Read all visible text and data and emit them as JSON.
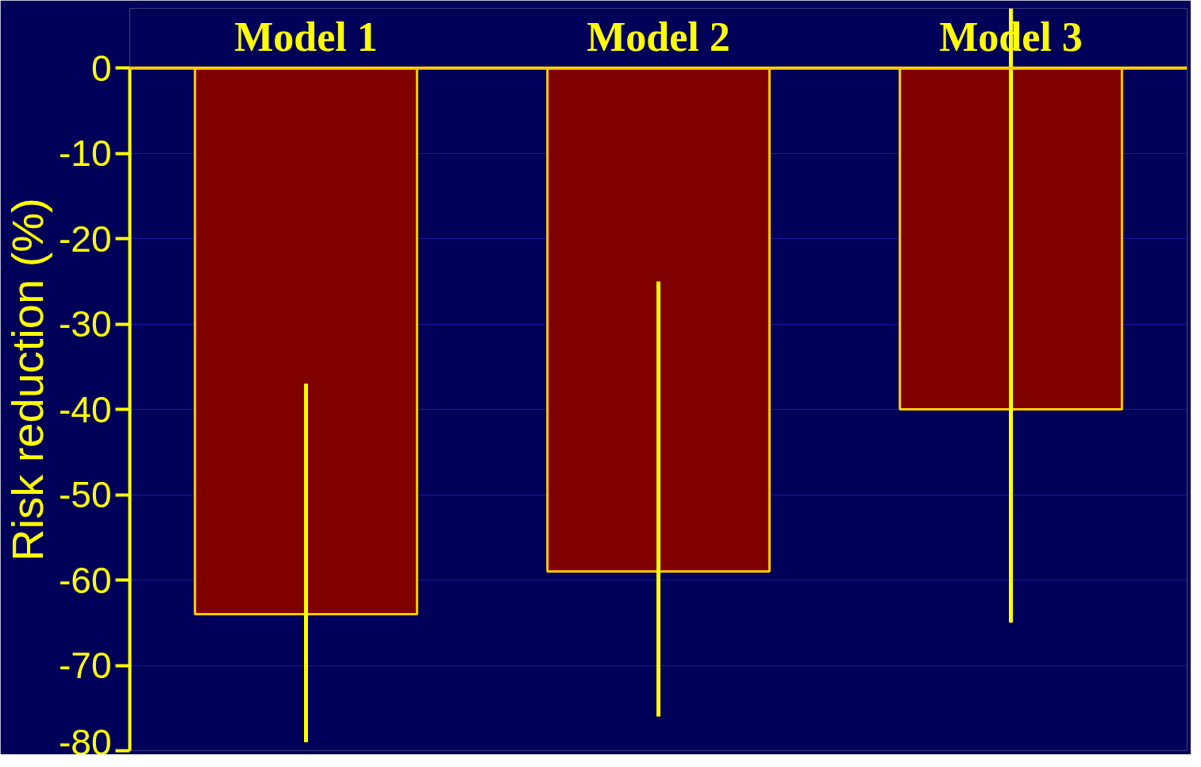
{
  "chart_data": {
    "type": "bar",
    "ylabel": "Risk reduction (%)",
    "categories": [
      "Model 1",
      "Model 2",
      "Model 3"
    ],
    "values": [
      -64,
      -59,
      -40
    ],
    "color": "#800000",
    "errors": [
      [
        -79,
        -37
      ],
      [
        -76,
        -25
      ],
      [
        -65,
        7
      ]
    ],
    "ylim": [
      -80,
      7
    ],
    "yticks": [
      0,
      -10,
      -20,
      -30,
      -40,
      -50,
      -60,
      -70,
      -80
    ],
    "grid": "y",
    "ref_lines": [
      {
        "axis": "y",
        "value": 0,
        "color": "#ffcc00"
      }
    ]
  }
}
